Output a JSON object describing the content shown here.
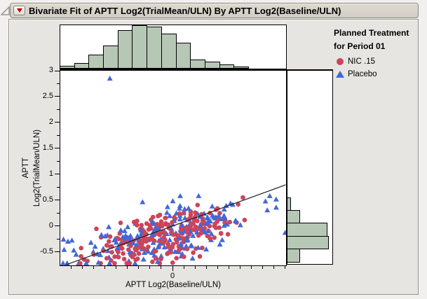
{
  "header": {
    "title": "Bivariate Fit of APTT Log2(TrialMean/ULN) By APTT Log2(Baseline/ULN)"
  },
  "legend": {
    "title_line1": "Planned Treatment",
    "title_line2": "for Period 01",
    "items": [
      {
        "label": "NIC .15",
        "marker": "circle",
        "color": "#cd4459"
      },
      {
        "label": "Placebo",
        "marker": "triangle",
        "color": "#4068d8"
      }
    ]
  },
  "colors": {
    "histogram_fill": "#b7c7b6",
    "frame": "#000000",
    "fit_line": "#1a1a1a",
    "marker_red": "#cd4459",
    "marker_blue": "#4068d8"
  },
  "chart_data": {
    "type": "scatter",
    "title": "Bivariate Fit of APTT Log2(TrialMean/ULN) By APTT Log2(Baseline/ULN)",
    "xlabel": "APTT Log2(Baseline/ULN)",
    "ylabel": "APTT Log2(TrialMean/ULN)",
    "ylabel_line1": "APTT",
    "ylabel_line2": "Log2(TrialMean/ULN)",
    "xlim": [
      -2.49,
      2.52
    ],
    "ylim": [
      -0.76,
      3.0
    ],
    "x_axis": {
      "labeled_ticks": [
        0
      ],
      "minor_tick_interval": 0.25,
      "grid": false
    },
    "y_axis": {
      "labeled_ticks": [
        -0.5,
        0,
        0.5,
        1,
        1.5,
        2,
        2.5,
        3
      ],
      "minor_tick_interval": 0.25,
      "grid": false
    },
    "fit_line": {
      "slope": 0.317,
      "intercept": 0.0,
      "x_start": -2.36,
      "x_end": 2.51
    },
    "series": [
      {
        "name": "NIC .15",
        "marker": "circle",
        "color": "#cd4459",
        "n": 225,
        "x_mean": -0.18,
        "x_sd": 0.78,
        "x_range": [
          -2.05,
          1.6
        ],
        "trend_slope": 0.2,
        "trend_intercept": -0.15,
        "y_sd": 0.21,
        "y_range": [
          -0.72,
          0.55
        ],
        "extra_points": []
      },
      {
        "name": "Placebo",
        "marker": "triangle",
        "color": "#4068d8",
        "n": 200,
        "x_mean": -0.18,
        "x_sd": 1.0,
        "x_range": [
          -2.43,
          2.3
        ],
        "trend_slope": 0.2,
        "trend_intercept": -0.12,
        "y_sd": 0.23,
        "y_range": [
          -0.72,
          0.58
        ],
        "extra_points": [
          [
            -1.39,
            2.85
          ],
          [
            2.5,
            -0.13
          ],
          [
            -2.42,
            -0.26
          ],
          [
            -2.32,
            -0.3
          ]
        ]
      }
    ],
    "top_histogram": {
      "orientation": "vertical",
      "bin_start": -2.49,
      "bin_width": 0.322,
      "values": [
        4,
        8,
        20,
        33,
        55,
        62,
        60,
        50,
        37,
        13,
        10,
        6,
        3
      ]
    },
    "right_histogram": {
      "orientation": "horizontal",
      "bin_top": 0.545,
      "bin_width": 0.25,
      "values": [
        5,
        18,
        57,
        59,
        18
      ]
    }
  }
}
